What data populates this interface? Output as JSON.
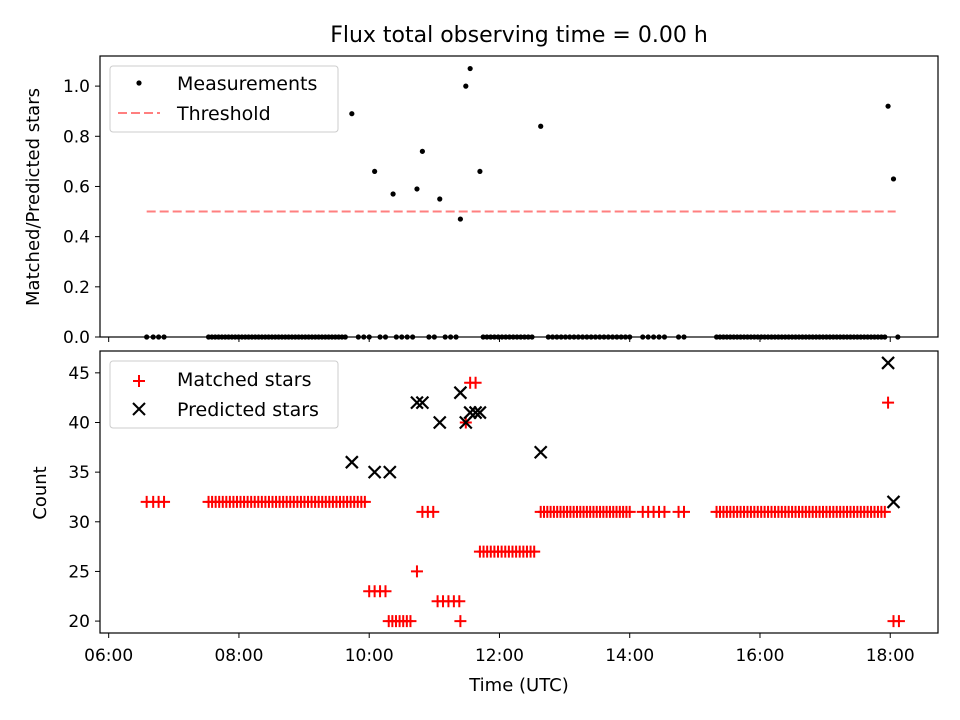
{
  "chart_data": [
    {
      "type": "scatter",
      "title": "Flux total observing time = 0.00 h",
      "ylabel": "Matched/Predicted stars",
      "ylim": [
        0,
        1.12
      ],
      "yticks": [
        0,
        0.2,
        0.4,
        0.6,
        0.8,
        1.0
      ],
      "ytick_labels": [
        "0.0",
        "0.2",
        "0.4",
        "0.6",
        "0.8",
        "1.0"
      ],
      "legend": "top-left",
      "legend_labels": [
        "Measurements",
        "Threshold"
      ],
      "threshold": {
        "value": 0.5,
        "x_start": "06:35",
        "x_end": "18:05",
        "color": "#ff7f7f"
      },
      "nonzero_points": [
        [
          "09:44",
          0.89
        ],
        [
          "10:05",
          0.66
        ],
        [
          "10:22",
          0.57
        ],
        [
          "10:44",
          0.59
        ],
        [
          "10:49",
          0.74
        ],
        [
          "11:05",
          0.55
        ],
        [
          "11:24",
          0.47
        ],
        [
          "11:29",
          1.0
        ],
        [
          "11:33",
          1.07
        ],
        [
          "11:42",
          0.66
        ],
        [
          "12:38",
          0.84
        ],
        [
          "17:58",
          0.92
        ],
        [
          "18:03",
          0.63
        ]
      ],
      "zero_point_runs": [
        [
          "06:35",
          "06:35",
          1
        ],
        [
          "06:41",
          "06:51",
          3
        ],
        [
          "07:32",
          "09:38",
          42
        ],
        [
          "09:50",
          "10:00",
          3
        ],
        [
          "10:10",
          "10:15",
          2
        ],
        [
          "10:25",
          "10:40",
          4
        ],
        [
          "10:55",
          "11:00",
          2
        ],
        [
          "11:10",
          "11:20",
          3
        ],
        [
          "11:45",
          "12:30",
          14
        ],
        [
          "12:45",
          "14:00",
          20
        ],
        [
          "14:12",
          "14:32",
          5
        ],
        [
          "14:45",
          "14:50",
          2
        ],
        [
          "15:20",
          "17:55",
          50
        ],
        [
          "18:07",
          "18:07",
          1
        ]
      ],
      "point_color": "#000000"
    },
    {
      "type": "scatter",
      "xlabel": "Time (UTC)",
      "ylabel": "Count",
      "xlim": [
        "05:52",
        "18:44"
      ],
      "ylim": [
        18.8,
        47.2
      ],
      "xticks": [
        "06:00",
        "08:00",
        "10:00",
        "12:00",
        "14:00",
        "16:00",
        "18:00"
      ],
      "yticks": [
        20,
        25,
        30,
        35,
        40,
        45
      ],
      "legend": "top-left",
      "series": [
        {
          "name": "Matched stars",
          "marker": "+",
          "color": "#ff0000",
          "runs": [
            [
              "06:35",
              "06:35",
              1,
              32
            ],
            [
              "06:41",
              "06:51",
              3,
              32
            ],
            [
              "07:32",
              "09:56",
              45,
              32
            ],
            [
              "10:00",
              "10:15",
              4,
              23
            ],
            [
              "10:18",
              "10:38",
              7,
              20
            ],
            [
              "10:44",
              "10:44",
              1,
              25
            ],
            [
              "10:49",
              "10:59",
              3,
              31
            ],
            [
              "11:03",
              "11:23",
              5,
              22
            ],
            [
              "11:24",
              "11:24",
              1,
              20
            ],
            [
              "11:29",
              "11:29",
              1,
              40
            ],
            [
              "11:33",
              "11:38",
              2,
              44
            ],
            [
              "11:42",
              "12:32",
              16,
              27
            ],
            [
              "12:38",
              "14:00",
              28,
              31
            ],
            [
              "14:12",
              "14:32",
              5,
              31
            ],
            [
              "14:45",
              "14:50",
              2,
              31
            ],
            [
              "15:20",
              "17:55",
              50,
              31
            ],
            [
              "17:58",
              "17:58",
              1,
              42
            ],
            [
              "18:03",
              "18:08",
              2,
              20
            ]
          ]
        },
        {
          "name": "Predicted stars",
          "marker": "x",
          "color": "#000000",
          "points": [
            [
              "09:44",
              36
            ],
            [
              "10:05",
              35
            ],
            [
              "10:19",
              35
            ],
            [
              "10:44",
              42
            ],
            [
              "10:49",
              42
            ],
            [
              "11:05",
              40
            ],
            [
              "11:24",
              43
            ],
            [
              "11:29",
              40
            ],
            [
              "11:33",
              41
            ],
            [
              "11:38",
              41
            ],
            [
              "11:42",
              41
            ],
            [
              "12:38",
              37
            ],
            [
              "17:58",
              46
            ],
            [
              "18:03",
              32
            ]
          ]
        }
      ]
    }
  ]
}
